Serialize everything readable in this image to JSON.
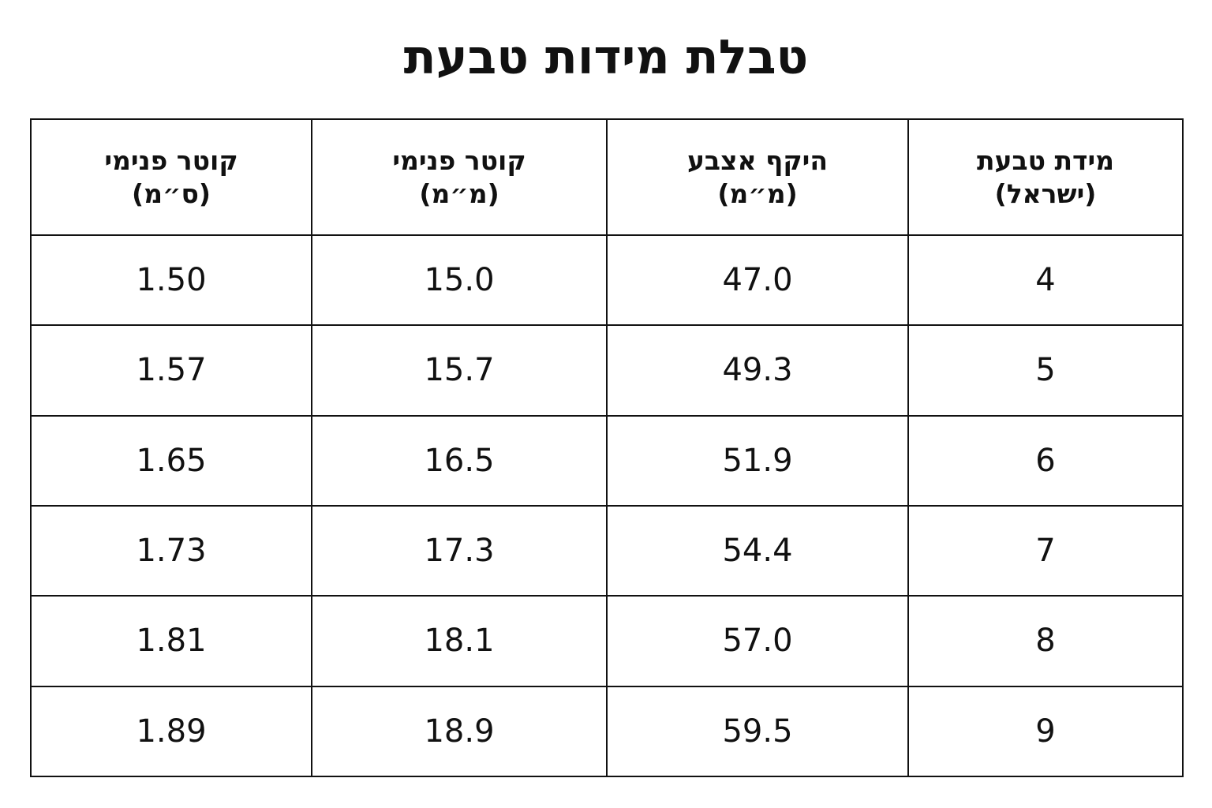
{
  "title": "טבלת מידות טבעת",
  "table": {
    "header": [
      [
        "מידת טבעת",
        "(ישראל)"
      ],
      [
        "היקף אצבע",
        "(מ״מ)"
      ],
      [
        "קוטר פנימי",
        "(מ״מ)"
      ],
      [
        "קוטר פנימי",
        "(ס״מ)"
      ]
    ],
    "rows": [
      [
        "4",
        "47.0",
        "15.0",
        "1.50"
      ],
      [
        "5",
        "49.3",
        "15.7",
        "1.57"
      ],
      [
        "6",
        "51.9",
        "16.5",
        "1.65"
      ],
      [
        "7",
        "54.4",
        "17.3",
        "1.73"
      ],
      [
        "8",
        "57.0",
        "18.1",
        "1.81"
      ],
      [
        "9",
        "59.5",
        "18.9",
        "1.89"
      ]
    ]
  }
}
